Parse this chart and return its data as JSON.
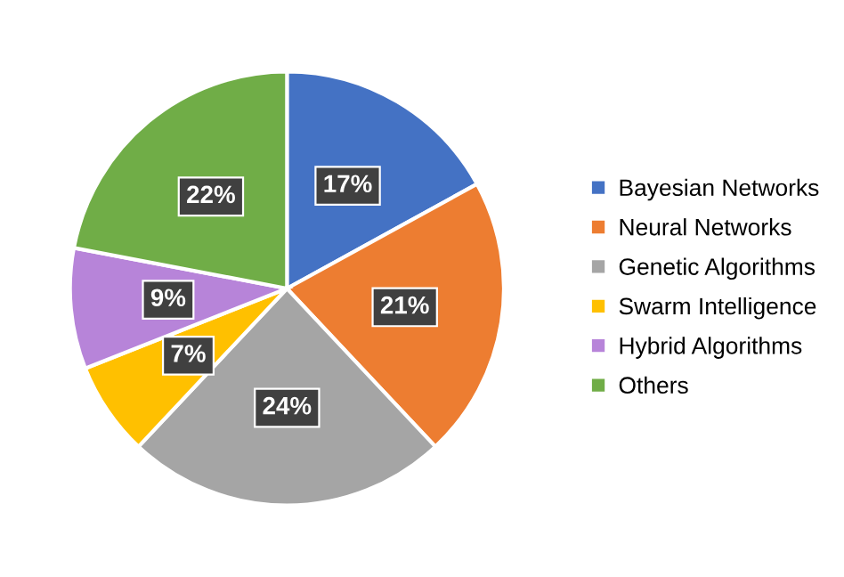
{
  "chart_data": {
    "type": "pie",
    "categories": [
      "Bayesian Networks",
      "Neural Networks",
      "Genetic Algorithms",
      "Swarm Intelligence",
      "Hybrid Algorithms",
      "Others"
    ],
    "values": [
      17,
      21,
      24,
      7,
      9,
      22
    ],
    "value_labels": [
      "17%",
      "21%",
      "24%",
      "7%",
      "9%",
      "22%"
    ],
    "colors": [
      "#4472c4",
      "#ed7d31",
      "#a5a5a5",
      "#ffc000",
      "#b784d9",
      "#70ad47"
    ],
    "legend": "right"
  }
}
